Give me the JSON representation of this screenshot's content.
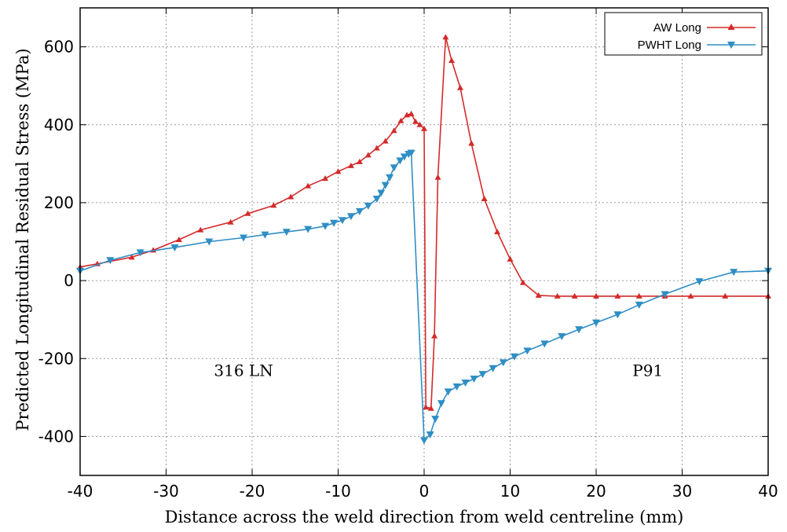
{
  "chart_data": {
    "type": "line",
    "title": "",
    "xlabel": "Distance across the weld direction from weld centreline (mm)",
    "ylabel": "Predicted Longitudinal Residual Stress (MPa)",
    "xlim": [
      -40,
      40
    ],
    "ylim": [
      -500,
      700
    ],
    "xticks": [
      -40,
      -30,
      -20,
      -10,
      0,
      10,
      20,
      30,
      40
    ],
    "yticks": [
      -400,
      -200,
      0,
      200,
      400,
      600
    ],
    "grid": true,
    "legend_position": "top-right",
    "annotations": [
      {
        "text": "316 LN",
        "x": -21,
        "y": -245
      },
      {
        "text": "P91",
        "x": 26,
        "y": -245
      }
    ],
    "series": [
      {
        "name": "AW Long",
        "color": "#d42a2a",
        "marker": "triangle-up",
        "x": [
          -40,
          -38,
          -34,
          -31.5,
          -28.5,
          -26,
          -22.5,
          -20.5,
          -17.5,
          -15.5,
          -13.5,
          -11.5,
          -10,
          -8.5,
          -7.5,
          -6.5,
          -5.5,
          -4.5,
          -3.5,
          -2.7,
          -2.0,
          -1.5,
          -1.0,
          -0.5,
          0,
          0.2,
          0.8,
          1.2,
          1.6,
          2.5,
          3.2,
          4.2,
          5.5,
          7.0,
          8.5,
          10.0,
          11.5,
          13.3,
          15.5,
          17.5,
          20.0,
          22.5,
          25.0,
          28.0,
          31.0,
          35.0,
          40.0
        ],
        "y": [
          35,
          43,
          60,
          78,
          105,
          130,
          150,
          172,
          193,
          215,
          243,
          262,
          280,
          295,
          305,
          322,
          340,
          358,
          385,
          410,
          425,
          428,
          408,
          400,
          390,
          -325,
          -328,
          -142,
          265,
          625,
          565,
          495,
          352,
          210,
          125,
          55,
          -5,
          -38,
          -40,
          -40,
          -40,
          -40,
          -40,
          -40,
          -40,
          -40,
          -40
        ]
      },
      {
        "name": "PWHT Long",
        "color": "#2f8ec4",
        "marker": "triangle-down",
        "x": [
          -40,
          -36.5,
          -33,
          -29,
          -25,
          -21,
          -18.5,
          -16,
          -13.5,
          -11.5,
          -10.5,
          -9.5,
          -8.5,
          -7.5,
          -6.5,
          -5.5,
          -5.0,
          -4.5,
          -4.0,
          -3.5,
          -2.8,
          -2.3,
          -1.8,
          -1.5,
          0,
          0.7,
          1.3,
          2.0,
          2.8,
          3.8,
          4.8,
          5.8,
          6.8,
          8.0,
          9.2,
          10.5,
          12.0,
          14.0,
          16.0,
          18.0,
          20.0,
          22.5,
          25.0,
          28.0,
          32.0,
          36.0,
          40.0
        ],
        "y": [
          25,
          52,
          72,
          85,
          100,
          110,
          118,
          125,
          132,
          140,
          148,
          155,
          165,
          178,
          192,
          210,
          225,
          245,
          265,
          290,
          308,
          318,
          325,
          328,
          -410,
          -395,
          -355,
          -315,
          -285,
          -272,
          -262,
          -252,
          -240,
          -225,
          -210,
          -195,
          -180,
          -162,
          -143,
          -125,
          -108,
          -87,
          -62,
          -35,
          -2,
          22,
          25
        ]
      }
    ]
  }
}
